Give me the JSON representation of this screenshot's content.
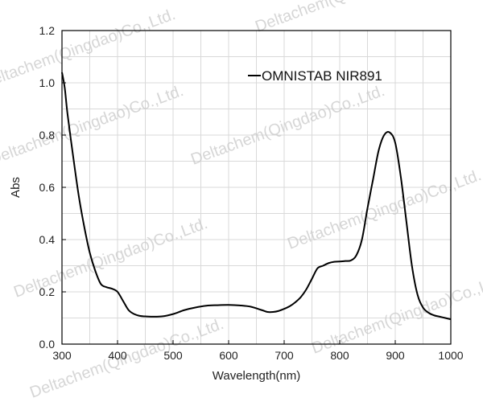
{
  "chart_data": {
    "type": "line",
    "title": "",
    "xlabel": "Wavelength(nm)",
    "ylabel": "Abs",
    "xlim": [
      300,
      1000
    ],
    "ylim": [
      0.0,
      1.2
    ],
    "x_ticks": [
      300,
      400,
      500,
      600,
      700,
      800,
      900,
      1000
    ],
    "y_ticks": [
      "0.0",
      "0.2",
      "0.4",
      "0.6",
      "0.8",
      "1.0",
      "1.2"
    ],
    "grid": true,
    "legend_position": "top-right",
    "series": [
      {
        "name": "OMNISTAB NIR891",
        "color": "#000000",
        "x": [
          300,
          305,
          310,
          320,
          330,
          340,
          350,
          360,
          370,
          380,
          390,
          400,
          410,
          420,
          430,
          440,
          450,
          460,
          480,
          500,
          520,
          540,
          560,
          580,
          600,
          620,
          640,
          660,
          670,
          680,
          690,
          700,
          710,
          720,
          730,
          740,
          750,
          760,
          770,
          780,
          790,
          800,
          810,
          820,
          830,
          840,
          850,
          860,
          870,
          880,
          890,
          900,
          910,
          920,
          930,
          940,
          950,
          960,
          970,
          980,
          990,
          1000
        ],
        "y": [
          1.04,
          0.98,
          0.88,
          0.72,
          0.57,
          0.45,
          0.35,
          0.28,
          0.23,
          0.218,
          0.212,
          0.2,
          0.165,
          0.13,
          0.115,
          0.108,
          0.106,
          0.105,
          0.106,
          0.115,
          0.13,
          0.14,
          0.147,
          0.149,
          0.15,
          0.148,
          0.143,
          0.13,
          0.123,
          0.123,
          0.127,
          0.135,
          0.145,
          0.16,
          0.18,
          0.21,
          0.25,
          0.29,
          0.3,
          0.31,
          0.315,
          0.316,
          0.318,
          0.32,
          0.34,
          0.4,
          0.52,
          0.63,
          0.74,
          0.8,
          0.81,
          0.77,
          0.64,
          0.47,
          0.3,
          0.19,
          0.14,
          0.12,
          0.11,
          0.105,
          0.1,
          0.095
        ]
      }
    ]
  },
  "watermark": {
    "text": "Deltachem(Qingdao)Co.,Ltd."
  }
}
